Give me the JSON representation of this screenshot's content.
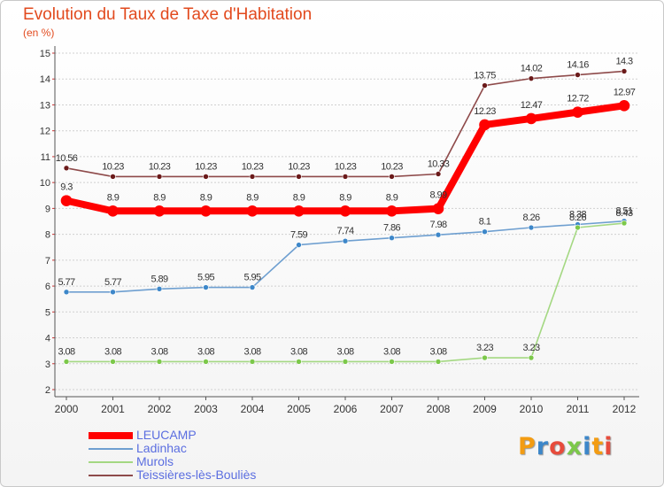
{
  "title": "Evolution du Taux de Taxe d'Habitation",
  "subtitle": "(en %)",
  "brand": "Proxiti",
  "colors": {
    "title": "#e24a1e",
    "legend_text": "#5b6ee0",
    "grid": "#d0d0d0",
    "axis": "#555555"
  },
  "chart_data": {
    "type": "line",
    "x": [
      "2000",
      "2001",
      "2002",
      "2003",
      "2004",
      "2005",
      "2006",
      "2007",
      "2008",
      "2009",
      "2010",
      "2011",
      "2012"
    ],
    "ylim": [
      2,
      15
    ],
    "yticks": [
      2,
      3,
      4,
      5,
      6,
      7,
      8,
      9,
      10,
      11,
      12,
      13,
      14,
      15
    ],
    "grid": "horizontal",
    "legend_position": "bottom-left",
    "series": [
      {
        "name": "LEUCAMP",
        "color": "#ff0000",
        "marker": "#ff0000",
        "width": 8,
        "values": [
          9.3,
          8.9,
          8.9,
          8.9,
          8.9,
          8.9,
          8.9,
          8.9,
          8.99,
          12.23,
          12.47,
          12.72,
          12.97
        ],
        "labels": [
          "9.3",
          "8.9",
          "8.9",
          "8.9",
          "8.9",
          "8.9",
          "8.9",
          "8.9",
          "8.99",
          "12.23",
          "12.47",
          "12.72",
          "12.97"
        ]
      },
      {
        "name": "Ladinhac",
        "color": "#6e9fd0",
        "marker": "#3d87c9",
        "width": 1.6,
        "values": [
          5.77,
          5.77,
          5.89,
          5.95,
          5.95,
          7.59,
          7.74,
          7.86,
          7.98,
          8.1,
          8.26,
          8.38,
          8.51
        ],
        "labels": [
          "5.77",
          "5.77",
          "5.89",
          "5.95",
          "5.95",
          "7.59",
          "7.74",
          "7.86",
          "7.98",
          "8.1",
          "8.26",
          "8.38",
          "8.51"
        ]
      },
      {
        "name": "Murols",
        "color": "#a4d882",
        "marker": "#7cc84a",
        "width": 1.6,
        "values": [
          3.08,
          3.08,
          3.08,
          3.08,
          3.08,
          3.08,
          3.08,
          3.08,
          3.08,
          3.23,
          3.23,
          8.26,
          8.43
        ],
        "labels": [
          "3.08",
          "3.08",
          "3.08",
          "3.08",
          "3.08",
          "3.08",
          "3.08",
          "3.08",
          "3.08",
          "3.23",
          "3.23",
          "8.26",
          "8.43"
        ]
      },
      {
        "name": "Teissières-lès-Bouliès",
        "color": "#8e4a4a",
        "marker": "#6b1a1a",
        "width": 1.6,
        "values": [
          10.56,
          10.23,
          10.23,
          10.23,
          10.23,
          10.23,
          10.23,
          10.23,
          10.33,
          13.75,
          14.02,
          14.16,
          14.3
        ],
        "labels": [
          "10.56",
          "10.23",
          "10.23",
          "10.23",
          "10.23",
          "10.23",
          "10.23",
          "10.23",
          "10.33",
          "13.75",
          "14.02",
          "14.16",
          "14.3"
        ]
      }
    ]
  }
}
